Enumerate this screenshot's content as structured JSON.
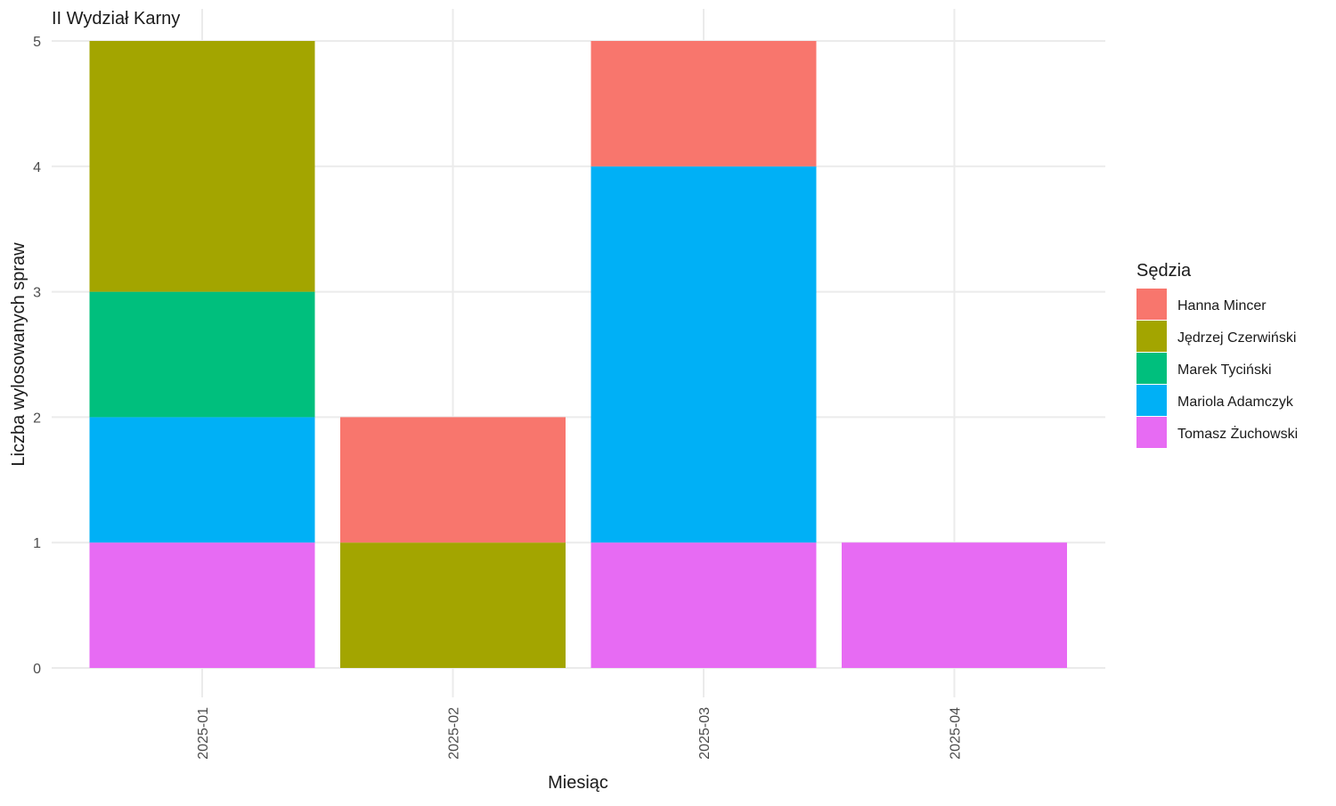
{
  "chart_data": {
    "type": "bar",
    "stacked": true,
    "title": "II Wydział Karny",
    "xlabel": "Miesiąc",
    "ylabel": "Liczba wylosowanych spraw",
    "ylim": [
      0,
      5
    ],
    "yticks": [
      0,
      1,
      2,
      3,
      4,
      5
    ],
    "grid": true,
    "legend_position": "right",
    "legend_title": "Sędzia",
    "categories": [
      "2025-01",
      "2025-02",
      "2025-03",
      "2025-04"
    ],
    "series": [
      {
        "name": "Hanna Mincer",
        "color": "#F8766D",
        "values": [
          0,
          1,
          1,
          0
        ]
      },
      {
        "name": "Jędrzej Czerwiński",
        "color": "#A3A500",
        "values": [
          2,
          1,
          0,
          0
        ]
      },
      {
        "name": "Marek Tyciński",
        "color": "#00BF7D",
        "values": [
          1,
          0,
          0,
          0
        ]
      },
      {
        "name": "Mariola Adamczyk",
        "color": "#00B0F6",
        "values": [
          1,
          0,
          3,
          0
        ]
      },
      {
        "name": "Tomasz Żuchowski",
        "color": "#E76BF3",
        "values": [
          1,
          0,
          1,
          1
        ]
      }
    ]
  }
}
